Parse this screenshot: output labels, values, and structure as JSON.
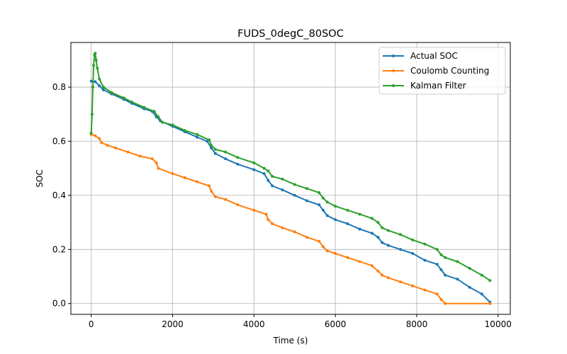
{
  "chart_data": {
    "type": "line",
    "title": "FUDS_0degC_80SOC",
    "xlabel": "Time (s)",
    "ylabel": "SOC",
    "xlim": [
      -500,
      10300
    ],
    "ylim": [
      -0.04,
      0.965
    ],
    "xticks": [
      0,
      2000,
      4000,
      6000,
      8000,
      10000
    ],
    "yticks": [
      0.0,
      0.2,
      0.4,
      0.6,
      0.8
    ],
    "xtick_labels": [
      "0",
      "2000",
      "4000",
      "6000",
      "8000",
      "10000"
    ],
    "ytick_labels": [
      "0.0",
      "0.2",
      "0.4",
      "0.6",
      "0.8"
    ],
    "grid": true,
    "legend_position": "top-right",
    "series": [
      {
        "name": "Actual SOC",
        "color": "#1f77b4",
        "points": [
          [
            0,
            0.822
          ],
          [
            100,
            0.82
          ],
          [
            200,
            0.805
          ],
          [
            300,
            0.79
          ],
          [
            500,
            0.775
          ],
          [
            800,
            0.755
          ],
          [
            1000,
            0.74
          ],
          [
            1300,
            0.72
          ],
          [
            1500,
            0.71
          ],
          [
            1600,
            0.69
          ],
          [
            1700,
            0.675
          ],
          [
            2000,
            0.655
          ],
          [
            2300,
            0.635
          ],
          [
            2600,
            0.615
          ],
          [
            2850,
            0.6
          ],
          [
            2950,
            0.575
          ],
          [
            3050,
            0.555
          ],
          [
            3300,
            0.535
          ],
          [
            3600,
            0.515
          ],
          [
            4000,
            0.495
          ],
          [
            4250,
            0.48
          ],
          [
            4350,
            0.455
          ],
          [
            4450,
            0.435
          ],
          [
            4700,
            0.42
          ],
          [
            5000,
            0.4
          ],
          [
            5300,
            0.38
          ],
          [
            5600,
            0.365
          ],
          [
            5700,
            0.345
          ],
          [
            5800,
            0.325
          ],
          [
            6000,
            0.31
          ],
          [
            6300,
            0.295
          ],
          [
            6600,
            0.275
          ],
          [
            6900,
            0.26
          ],
          [
            7050,
            0.245
          ],
          [
            7150,
            0.225
          ],
          [
            7300,
            0.215
          ],
          [
            7600,
            0.2
          ],
          [
            7900,
            0.185
          ],
          [
            8200,
            0.16
          ],
          [
            8500,
            0.145
          ],
          [
            8600,
            0.125
          ],
          [
            8700,
            0.105
          ],
          [
            9000,
            0.09
          ],
          [
            9300,
            0.06
          ],
          [
            9600,
            0.035
          ],
          [
            9800,
            0.005
          ]
        ]
      },
      {
        "name": "Coulomb Counting",
        "color": "#ff7f0e",
        "points": [
          [
            0,
            0.625
          ],
          [
            100,
            0.62
          ],
          [
            200,
            0.61
          ],
          [
            250,
            0.595
          ],
          [
            400,
            0.585
          ],
          [
            600,
            0.575
          ],
          [
            900,
            0.56
          ],
          [
            1200,
            0.545
          ],
          [
            1500,
            0.535
          ],
          [
            1600,
            0.52
          ],
          [
            1650,
            0.5
          ],
          [
            2000,
            0.48
          ],
          [
            2300,
            0.465
          ],
          [
            2600,
            0.45
          ],
          [
            2900,
            0.435
          ],
          [
            2950,
            0.415
          ],
          [
            3050,
            0.395
          ],
          [
            3300,
            0.385
          ],
          [
            3600,
            0.365
          ],
          [
            4000,
            0.345
          ],
          [
            4300,
            0.33
          ],
          [
            4350,
            0.31
          ],
          [
            4450,
            0.295
          ],
          [
            4700,
            0.28
          ],
          [
            5000,
            0.265
          ],
          [
            5300,
            0.245
          ],
          [
            5600,
            0.23
          ],
          [
            5700,
            0.21
          ],
          [
            5800,
            0.195
          ],
          [
            6000,
            0.185
          ],
          [
            6300,
            0.17
          ],
          [
            6600,
            0.155
          ],
          [
            6900,
            0.14
          ],
          [
            7050,
            0.12
          ],
          [
            7150,
            0.105
          ],
          [
            7300,
            0.095
          ],
          [
            7600,
            0.08
          ],
          [
            7900,
            0.065
          ],
          [
            8200,
            0.05
          ],
          [
            8500,
            0.035
          ],
          [
            8600,
            0.015
          ],
          [
            8700,
            0.0
          ],
          [
            9800,
            0.0
          ]
        ]
      },
      {
        "name": "Kalman Filter",
        "color": "#2ca02c",
        "points": [
          [
            0,
            0.63
          ],
          [
            20,
            0.7
          ],
          [
            40,
            0.8
          ],
          [
            60,
            0.88
          ],
          [
            80,
            0.92
          ],
          [
            100,
            0.925
          ],
          [
            120,
            0.9
          ],
          [
            150,
            0.87
          ],
          [
            200,
            0.83
          ],
          [
            300,
            0.8
          ],
          [
            500,
            0.78
          ],
          [
            800,
            0.76
          ],
          [
            1000,
            0.745
          ],
          [
            1300,
            0.725
          ],
          [
            1550,
            0.71
          ],
          [
            1650,
            0.69
          ],
          [
            1750,
            0.67
          ],
          [
            2000,
            0.66
          ],
          [
            2300,
            0.64
          ],
          [
            2600,
            0.625
          ],
          [
            2900,
            0.605
          ],
          [
            2950,
            0.585
          ],
          [
            3050,
            0.57
          ],
          [
            3300,
            0.56
          ],
          [
            3600,
            0.54
          ],
          [
            4000,
            0.52
          ],
          [
            4250,
            0.5
          ],
          [
            4350,
            0.49
          ],
          [
            4450,
            0.47
          ],
          [
            4700,
            0.46
          ],
          [
            5000,
            0.44
          ],
          [
            5300,
            0.425
          ],
          [
            5600,
            0.41
          ],
          [
            5700,
            0.39
          ],
          [
            5800,
            0.375
          ],
          [
            6000,
            0.36
          ],
          [
            6300,
            0.345
          ],
          [
            6600,
            0.33
          ],
          [
            6900,
            0.315
          ],
          [
            7050,
            0.3
          ],
          [
            7150,
            0.28
          ],
          [
            7300,
            0.27
          ],
          [
            7600,
            0.255
          ],
          [
            7900,
            0.235
          ],
          [
            8200,
            0.22
          ],
          [
            8500,
            0.2
          ],
          [
            8600,
            0.18
          ],
          [
            8700,
            0.17
          ],
          [
            9000,
            0.155
          ],
          [
            9300,
            0.13
          ],
          [
            9600,
            0.105
          ],
          [
            9800,
            0.085
          ]
        ]
      }
    ]
  }
}
